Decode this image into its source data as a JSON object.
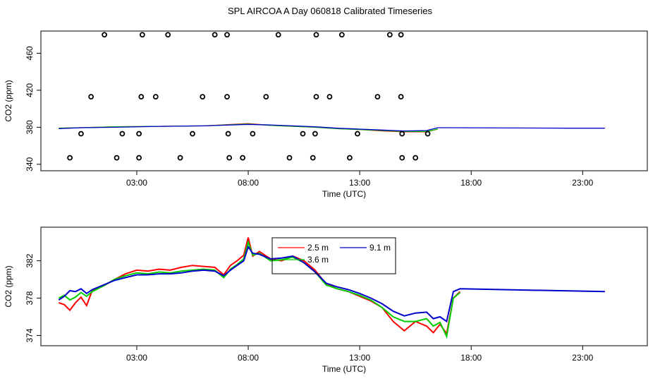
{
  "title": "SPL AIRCOA A  Day 060818  Calibrated Timeseries",
  "chart_data": [
    {
      "type": "scatter",
      "xlabel": "Time (UTC)",
      "ylabel": "CO2 (ppm)",
      "xticks": [
        "03:00",
        "08:00",
        "13:00",
        "18:00",
        "23:00"
      ],
      "xtick_values": [
        3,
        8,
        13,
        18,
        23
      ],
      "yticks": [
        "340",
        "380",
        "420",
        "460"
      ],
      "ytick_values": [
        340,
        380,
        420,
        460
      ],
      "xlim": [
        -1.3,
        25.9
      ],
      "ylim": [
        333,
        484
      ],
      "points": [
        {
          "x": 1.55,
          "y": 480
        },
        {
          "x": 3.25,
          "y": 480
        },
        {
          "x": 4.4,
          "y": 480
        },
        {
          "x": 6.5,
          "y": 480
        },
        {
          "x": 7.05,
          "y": 480
        },
        {
          "x": 9.35,
          "y": 480
        },
        {
          "x": 11.05,
          "y": 480
        },
        {
          "x": 12.2,
          "y": 480
        },
        {
          "x": 14.35,
          "y": 480
        },
        {
          "x": 14.85,
          "y": 480
        },
        {
          "x": 0.95,
          "y": 413
        },
        {
          "x": 3.2,
          "y": 413
        },
        {
          "x": 3.85,
          "y": 413
        },
        {
          "x": 5.95,
          "y": 413
        },
        {
          "x": 7.05,
          "y": 413
        },
        {
          "x": 8.8,
          "y": 413
        },
        {
          "x": 11.05,
          "y": 413
        },
        {
          "x": 11.65,
          "y": 413
        },
        {
          "x": 13.8,
          "y": 413
        },
        {
          "x": 14.85,
          "y": 413
        },
        {
          "x": 0.5,
          "y": 373
        },
        {
          "x": 2.35,
          "y": 373
        },
        {
          "x": 3.1,
          "y": 373
        },
        {
          "x": 5.5,
          "y": 373
        },
        {
          "x": 7.1,
          "y": 373
        },
        {
          "x": 8.2,
          "y": 373
        },
        {
          "x": 10.45,
          "y": 373
        },
        {
          "x": 11.0,
          "y": 373
        },
        {
          "x": 12.9,
          "y": 373
        },
        {
          "x": 14.9,
          "y": 373
        },
        {
          "x": 16.05,
          "y": 373
        },
        {
          "x": 0.0,
          "y": 347
        },
        {
          "x": 2.1,
          "y": 347
        },
        {
          "x": 3.1,
          "y": 347
        },
        {
          "x": 4.95,
          "y": 347
        },
        {
          "x": 7.15,
          "y": 347
        },
        {
          "x": 7.75,
          "y": 347
        },
        {
          "x": 9.85,
          "y": 347
        },
        {
          "x": 10.9,
          "y": 347
        },
        {
          "x": 12.55,
          "y": 347
        },
        {
          "x": 14.9,
          "y": 347
        },
        {
          "x": 15.5,
          "y": 347
        }
      ],
      "lines": [
        {
          "color": "#ff0000",
          "x": [
            -0.5,
            0.5,
            2,
            4,
            6,
            8,
            9,
            11,
            12,
            13,
            14,
            15,
            16,
            16.5
          ],
          "y": [
            379,
            379.5,
            380.5,
            381,
            381.5,
            384,
            382,
            380,
            378.5,
            377.5,
            376,
            375,
            375,
            378
          ]
        },
        {
          "color": "#00cc00",
          "x": [
            -0.5,
            0.5,
            2,
            4,
            6,
            8,
            9,
            11,
            12,
            13,
            14,
            15,
            16,
            16.5
          ],
          "y": [
            379,
            379.5,
            380.5,
            381,
            381.5,
            383.5,
            382,
            380,
            378.5,
            377.5,
            376.5,
            375.5,
            375.5,
            378
          ]
        },
        {
          "color": "#0000cc",
          "x": [
            -0.5,
            0.5,
            2,
            4,
            6,
            8,
            9,
            11,
            12,
            13,
            14,
            15,
            16,
            16.5,
            17,
            22.5,
            24
          ],
          "y": [
            378.5,
            379.5,
            380,
            381,
            381.5,
            383,
            382.5,
            380.5,
            379,
            378,
            377,
            376,
            376.5,
            379.5,
            379.5,
            379,
            379
          ]
        }
      ]
    },
    {
      "type": "line",
      "xlabel": "Time (UTC)",
      "ylabel": "CO2 (ppm)",
      "xticks": [
        "03:00",
        "08:00",
        "13:00",
        "18:00",
        "23:00"
      ],
      "xtick_values": [
        3,
        8,
        13,
        18,
        23
      ],
      "yticks": [
        "374",
        "378",
        "382"
      ],
      "ytick_values": [
        374,
        378,
        382
      ],
      "xlim": [
        -1.3,
        25.9
      ],
      "ylim": [
        372.9,
        385.6
      ],
      "legend": {
        "position": "top-center",
        "entries": [
          {
            "name": "2.5 m",
            "color": "#ff0000"
          },
          {
            "name": "3.6 m",
            "color": "#00cc00"
          },
          {
            "name": "9.1 m",
            "color": "#0000cc"
          }
        ]
      },
      "series": [
        {
          "name": "2.5 m",
          "color": "#ff0000",
          "x": [
            -0.5,
            -0.25,
            0,
            0.25,
            0.5,
            0.75,
            1,
            1.5,
            2,
            2.5,
            3,
            3.5,
            4,
            4.5,
            5,
            5.5,
            6,
            6.5,
            6.9,
            7.2,
            7.5,
            7.8,
            8.0,
            8.2,
            8.5,
            9,
            9.5,
            10,
            10.5,
            11,
            11.5,
            12,
            12.5,
            13,
            13.5,
            14,
            14.5,
            15,
            15.5,
            16,
            16.3,
            16.6,
            16.9,
            17.2,
            17.5
          ],
          "y": [
            377.5,
            377.3,
            376.7,
            377.5,
            378.1,
            377.2,
            378.8,
            379.3,
            380.0,
            380.6,
            381.0,
            380.9,
            381.1,
            381.0,
            381.3,
            381.5,
            381.4,
            381.3,
            380.5,
            381.5,
            382.0,
            382.6,
            384.5,
            382.5,
            383.0,
            382.2,
            382.0,
            382.5,
            382.0,
            381.0,
            379.5,
            379.0,
            378.7,
            378.2,
            377.7,
            377.0,
            375.5,
            374.5,
            375.5,
            375.0,
            374.3,
            375.2,
            374.2,
            378.0,
            378.7
          ]
        },
        {
          "name": "3.6 m",
          "color": "#00cc00",
          "x": [
            -0.5,
            -0.25,
            0,
            0.25,
            0.5,
            0.75,
            1,
            1.5,
            2,
            2.5,
            3,
            3.5,
            4,
            4.5,
            5,
            5.5,
            6,
            6.5,
            6.9,
            7.2,
            7.5,
            7.8,
            8.0,
            8.2,
            8.5,
            9,
            9.5,
            10,
            10.5,
            11,
            11.5,
            12,
            12.5,
            13,
            13.5,
            14,
            14.5,
            15,
            15.5,
            16,
            16.3,
            16.6,
            16.9,
            17.2,
            17.5
          ],
          "y": [
            378.0,
            378.3,
            377.8,
            378.1,
            378.6,
            378.2,
            378.7,
            379.3,
            380.0,
            380.4,
            380.7,
            380.6,
            380.8,
            380.7,
            380.9,
            381.0,
            381.1,
            381.0,
            380.2,
            381.1,
            381.6,
            382.2,
            384.0,
            382.6,
            382.8,
            382.0,
            382.1,
            382.4,
            381.8,
            380.8,
            379.4,
            379.0,
            378.7,
            378.3,
            377.8,
            377.0,
            376.0,
            375.5,
            375.5,
            375.8,
            375.0,
            375.4,
            373.9,
            378.0,
            378.6
          ]
        },
        {
          "name": "9.1 m",
          "color": "#0000cc",
          "x": [
            -0.5,
            -0.25,
            0,
            0.25,
            0.5,
            0.75,
            1,
            1.5,
            2,
            2.5,
            3,
            3.5,
            4,
            4.5,
            5,
            5.5,
            6,
            6.5,
            6.9,
            7.2,
            7.5,
            7.8,
            8.0,
            8.2,
            8.5,
            9,
            9.5,
            10,
            10.5,
            11,
            11.5,
            12,
            12.5,
            13,
            13.5,
            14,
            14.5,
            15,
            15.5,
            16,
            16.3,
            16.6,
            16.9,
            17.2,
            17.5,
            24
          ],
          "y": [
            377.8,
            378.2,
            378.8,
            378.7,
            379.0,
            378.5,
            378.9,
            379.4,
            379.9,
            380.2,
            380.5,
            380.5,
            380.6,
            380.6,
            380.7,
            380.9,
            381.0,
            380.9,
            380.4,
            381.0,
            381.5,
            382.0,
            383.5,
            382.8,
            382.7,
            382.2,
            382.3,
            382.5,
            381.8,
            380.8,
            379.6,
            379.2,
            378.9,
            378.5,
            378.0,
            377.4,
            376.6,
            376.1,
            376.4,
            376.5,
            375.8,
            376.0,
            375.5,
            378.7,
            379.0,
            378.7
          ]
        }
      ]
    }
  ]
}
